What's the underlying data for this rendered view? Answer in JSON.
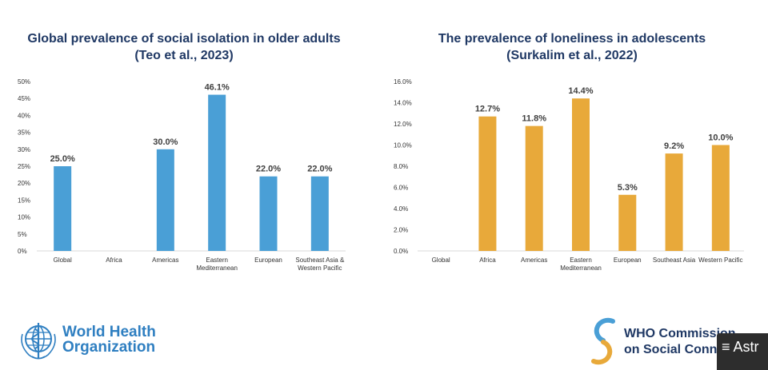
{
  "chart_data": [
    {
      "type": "bar",
      "title": "Global prevalence of social isolation in older adults",
      "subtitle": "(Teo et al., 2023)",
      "categories": [
        "Global",
        "Africa",
        "Americas",
        "Eastern Mediterranean",
        "European",
        "Southeast Asia & Western Pacific"
      ],
      "category_lines": [
        [
          "Global"
        ],
        [
          "Africa"
        ],
        [
          "Americas"
        ],
        [
          "Eastern",
          "Mediterranean"
        ],
        [
          "European"
        ],
        [
          "Southeast Asia &",
          "Western Pacific"
        ]
      ],
      "values": [
        25.0,
        null,
        30.0,
        46.1,
        22.0,
        22.0
      ],
      "data_labels": [
        "25.0%",
        "",
        "30.0%",
        "46.1%",
        "22.0%",
        "22.0%"
      ],
      "yticks": [
        "0%",
        "5%",
        "10%",
        "15%",
        "20%",
        "25%",
        "30%",
        "35%",
        "40%",
        "45%",
        "50%"
      ],
      "ylim": [
        0,
        50
      ],
      "grid": false,
      "color": "#4a9fd6"
    },
    {
      "type": "bar",
      "title": "The prevalence of loneliness in adolescents",
      "subtitle": "(Surkalim et al., 2022)",
      "categories": [
        "Global",
        "Africa",
        "Americas",
        "Eastern Mediterranean",
        "European",
        "Southeast Asia",
        "Western Pacific"
      ],
      "category_lines": [
        [
          "Global"
        ],
        [
          "Africa"
        ],
        [
          "Americas"
        ],
        [
          "Eastern",
          "Mediterranean"
        ],
        [
          "European"
        ],
        [
          "Southeast Asia"
        ],
        [
          "Western Pacific"
        ]
      ],
      "values": [
        null,
        12.7,
        11.8,
        14.4,
        5.3,
        9.2,
        10.0
      ],
      "data_labels": [
        "",
        "12.7%",
        "11.8%",
        "14.4%",
        "5.3%",
        "9.2%",
        "10.0%"
      ],
      "yticks": [
        "0.0%",
        "2.0%",
        "4.0%",
        "6.0%",
        "8.0%",
        "10.0%",
        "12.0%",
        "14.0%",
        "16.0%"
      ],
      "ylim": [
        0,
        16
      ],
      "grid": false,
      "color": "#e8a93a"
    }
  ],
  "logos": {
    "who_line1": "World Health",
    "who_line2": "Organization",
    "commission_line1": "WHO Commission",
    "commission_line2": "on Social Conne"
  },
  "overlay": {
    "label": "≡ Astr"
  }
}
